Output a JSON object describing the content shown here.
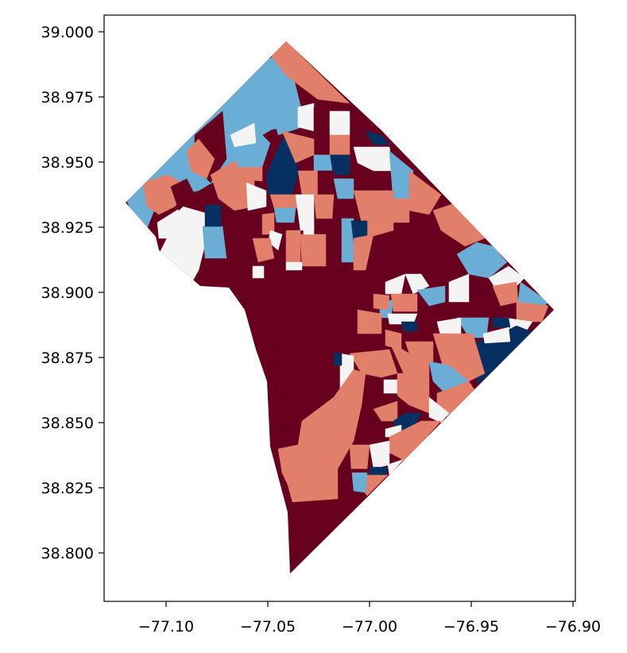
{
  "colors": {
    "class_1": "#67001f",
    "class_2": "#e17f6a",
    "class_3": "#f4f4f4",
    "class_4": "#6aaed6",
    "class_5": "#053061",
    "axes_frame": "#000000",
    "background": "#ffffff"
  },
  "axes": {
    "x_ticks": [
      "−77.10",
      "−77.05",
      "−77.00",
      "−76.95",
      "−76.90"
    ],
    "y_ticks": [
      "39.000",
      "38.975",
      "38.950",
      "38.925",
      "38.900",
      "38.875",
      "38.850",
      "38.825",
      "38.800"
    ],
    "xlim": [
      -77.13,
      -76.9
    ],
    "ylim": [
      38.79,
      39.01
    ]
  }
}
